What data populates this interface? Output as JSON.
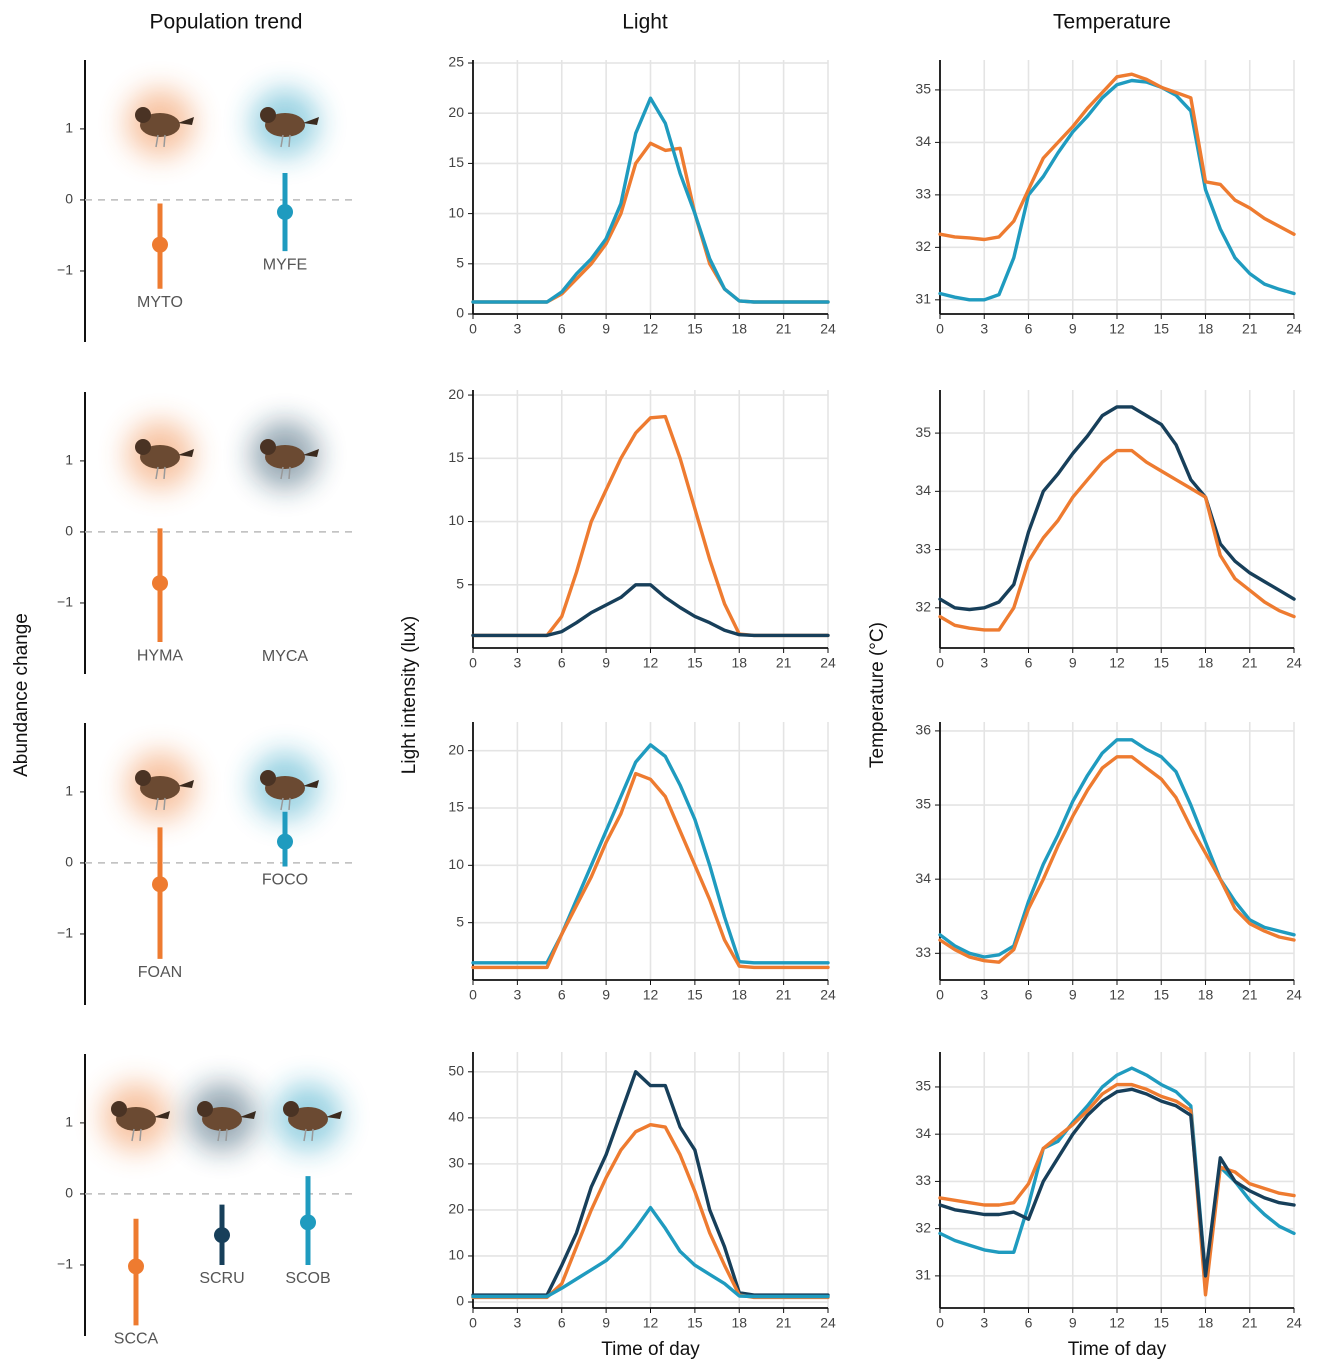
{
  "chart_data": [
    {
      "type": "pointrange",
      "title": "Population trend",
      "categories": [
        "MYTO",
        "MYFE"
      ],
      "values": [
        -0.63,
        -0.17
      ],
      "lower": [
        -1.25,
        -0.72
      ],
      "upper": [
        -0.05,
        0.38
      ],
      "colors": [
        "#ee7b30",
        "#1f9bbf"
      ],
      "ylim": [
        -2,
        1.97
      ],
      "yticks": [
        {
          "value": -1,
          "label": "−1"
        },
        0,
        1
      ]
    },
    {
      "type": "line",
      "title": "Light",
      "x": [
        0,
        1,
        2,
        3,
        4,
        5,
        6,
        7,
        8,
        9,
        10,
        11,
        12,
        13,
        14,
        15,
        16,
        17,
        18,
        19,
        20,
        21,
        22,
        23,
        24
      ],
      "series": [
        {
          "color": "#ee7b30",
          "values": [
            1.2,
            1.2,
            1.2,
            1.2,
            1.2,
            1.2,
            2,
            3.5,
            5,
            7,
            10,
            15,
            17,
            16.3,
            16.5,
            10,
            5,
            2.5,
            1.3,
            1.2,
            1.2,
            1.2,
            1.2,
            1.2,
            1.2
          ]
        },
        {
          "color": "#1f9bbf",
          "values": [
            1.2,
            1.2,
            1.2,
            1.2,
            1.2,
            1.2,
            2.2,
            4,
            5.5,
            7.5,
            11,
            18,
            21.5,
            19,
            14,
            10,
            5.5,
            2.5,
            1.3,
            1.2,
            1.2,
            1.2,
            1.2,
            1.2,
            1.2
          ]
        }
      ],
      "xlim": [
        0,
        24
      ],
      "xticks": [
        0,
        3,
        6,
        9,
        12,
        15,
        18,
        21,
        24
      ],
      "ylim": [
        0,
        25.3
      ],
      "yticks": [
        0,
        5,
        10,
        15,
        20,
        25
      ],
      "grid": true
    },
    {
      "type": "line",
      "title": "Temperature",
      "x": [
        0,
        1,
        2,
        3,
        4,
        5,
        6,
        7,
        8,
        9,
        10,
        11,
        12,
        13,
        14,
        15,
        16,
        17,
        18,
        19,
        20,
        21,
        22,
        23,
        24
      ],
      "series": [
        {
          "color": "#1f9bbf",
          "values": [
            31.12,
            31.05,
            31.0,
            31.0,
            31.1,
            31.8,
            33.0,
            33.35,
            33.8,
            34.2,
            34.5,
            34.85,
            35.1,
            35.18,
            35.15,
            35.05,
            34.9,
            34.6,
            33.1,
            32.35,
            31.8,
            31.5,
            31.3,
            31.2,
            31.12
          ]
        },
        {
          "color": "#ee7b30",
          "values": [
            32.25,
            32.2,
            32.18,
            32.15,
            32.2,
            32.5,
            33.1,
            33.7,
            34.0,
            34.3,
            34.65,
            34.95,
            35.25,
            35.3,
            35.2,
            35.05,
            34.95,
            34.85,
            33.25,
            33.2,
            32.9,
            32.75,
            32.55,
            32.4,
            32.25
          ]
        }
      ],
      "xlim": [
        0,
        24
      ],
      "xticks": [
        0,
        3,
        6,
        9,
        12,
        15,
        18,
        21,
        24
      ],
      "ylim": [
        30.73,
        35.57
      ],
      "yticks": [
        31,
        32,
        33,
        34,
        35
      ],
      "grid": true
    },
    {
      "type": "pointrange",
      "ylabel": "Abundance change",
      "categories": [
        "HYMA",
        "MYCA"
      ],
      "values": [
        -0.72,
        null
      ],
      "lower": [
        -1.55,
        null
      ],
      "upper": [
        0.05,
        null
      ],
      "colors": [
        "#ee7b30",
        "#173f5a"
      ],
      "ylim": [
        -2,
        1.97
      ],
      "yticks": [
        {
          "value": -1,
          "label": "−1"
        },
        0,
        1
      ]
    },
    {
      "type": "line",
      "ylabel": "Light intensity (lux)",
      "x": [
        0,
        1,
        2,
        3,
        4,
        5,
        6,
        7,
        8,
        9,
        10,
        11,
        12,
        13,
        14,
        15,
        16,
        17,
        18,
        19,
        20,
        21,
        22,
        23,
        24
      ],
      "series": [
        {
          "color": "#ee7b30",
          "values": [
            1,
            1,
            1,
            1,
            1,
            1,
            2.5,
            6,
            10,
            12.5,
            15,
            17,
            18.2,
            18.3,
            15,
            11,
            7,
            3.5,
            1.1,
            1,
            1,
            1,
            1,
            1,
            1
          ]
        },
        {
          "color": "#173f5a",
          "values": [
            1,
            1,
            1,
            1,
            1,
            1,
            1.3,
            2,
            2.8,
            3.4,
            4,
            5,
            5,
            4,
            3.2,
            2.5,
            2,
            1.4,
            1.05,
            1,
            1,
            1,
            1,
            1,
            1
          ]
        }
      ],
      "xlim": [
        0,
        24
      ],
      "xticks": [
        0,
        3,
        6,
        9,
        12,
        15,
        18,
        21,
        24
      ],
      "ylim": [
        0,
        20.4
      ],
      "yticks": [
        5,
        10,
        15,
        20
      ],
      "grid": true
    },
    {
      "type": "line",
      "ylabel": "Temperature (°C)",
      "x": [
        0,
        1,
        2,
        3,
        4,
        5,
        6,
        7,
        8,
        9,
        10,
        11,
        12,
        13,
        14,
        15,
        16,
        17,
        18,
        19,
        20,
        21,
        22,
        23,
        24
      ],
      "series": [
        {
          "color": "#173f5a",
          "values": [
            32.15,
            32.0,
            31.97,
            32.0,
            32.1,
            32.4,
            33.3,
            34.0,
            34.3,
            34.65,
            34.95,
            35.3,
            35.45,
            35.45,
            35.3,
            35.15,
            34.8,
            34.2,
            33.9,
            33.1,
            32.8,
            32.6,
            32.45,
            32.3,
            32.15
          ]
        },
        {
          "color": "#ee7b30",
          "values": [
            31.85,
            31.7,
            31.65,
            31.62,
            31.62,
            32.0,
            32.8,
            33.2,
            33.5,
            33.9,
            34.2,
            34.5,
            34.7,
            34.7,
            34.5,
            34.35,
            34.2,
            34.05,
            33.9,
            32.9,
            32.5,
            32.3,
            32.1,
            31.95,
            31.85
          ]
        }
      ],
      "xlim": [
        0,
        24
      ],
      "xticks": [
        0,
        3,
        6,
        9,
        12,
        15,
        18,
        21,
        24
      ],
      "ylim": [
        31.31,
        35.74
      ],
      "yticks": [
        32,
        33,
        34,
        35
      ],
      "grid": true
    },
    {
      "type": "pointrange",
      "categories": [
        "FOAN",
        "FOCO"
      ],
      "values": [
        -0.3,
        0.3
      ],
      "lower": [
        -1.35,
        -0.05
      ],
      "upper": [
        0.5,
        0.72
      ],
      "colors": [
        "#ee7b30",
        "#1f9bbf"
      ],
      "ylim": [
        -2,
        1.97
      ],
      "yticks": [
        {
          "value": -1,
          "label": "−1"
        },
        0,
        1
      ]
    },
    {
      "type": "line",
      "x": [
        0,
        1,
        2,
        3,
        4,
        5,
        6,
        7,
        8,
        9,
        10,
        11,
        12,
        13,
        14,
        15,
        16,
        17,
        18,
        19,
        20,
        21,
        22,
        23,
        24
      ],
      "series": [
        {
          "color": "#1f9bbf",
          "values": [
            1.5,
            1.5,
            1.5,
            1.5,
            1.5,
            1.5,
            4,
            7,
            10,
            13,
            16,
            19,
            20.5,
            19.5,
            17,
            14,
            10,
            5.5,
            1.6,
            1.5,
            1.5,
            1.5,
            1.5,
            1.5,
            1.5
          ]
        },
        {
          "color": "#ee7b30",
          "values": [
            1.1,
            1.1,
            1.1,
            1.1,
            1.1,
            1.1,
            4,
            6.5,
            9,
            12,
            14.5,
            18,
            17.5,
            16,
            13,
            10,
            7,
            3.5,
            1.2,
            1.1,
            1.1,
            1.1,
            1.1,
            1.1,
            1.1
          ]
        }
      ],
      "xlim": [
        0,
        24
      ],
      "xticks": [
        0,
        3,
        6,
        9,
        12,
        15,
        18,
        21,
        24
      ],
      "ylim": [
        0,
        22.5
      ],
      "yticks": [
        5,
        10,
        15,
        20
      ],
      "grid": true
    },
    {
      "type": "line",
      "x": [
        0,
        1,
        2,
        3,
        4,
        5,
        6,
        7,
        8,
        9,
        10,
        11,
        12,
        13,
        14,
        15,
        16,
        17,
        18,
        19,
        20,
        21,
        22,
        23,
        24
      ],
      "series": [
        {
          "color": "#1f9bbf",
          "values": [
            33.25,
            33.1,
            33.0,
            32.95,
            32.98,
            33.1,
            33.7,
            34.2,
            34.6,
            35.05,
            35.4,
            35.7,
            35.88,
            35.88,
            35.75,
            35.65,
            35.45,
            35.0,
            34.5,
            34.0,
            33.7,
            33.45,
            33.35,
            33.3,
            33.25
          ]
        },
        {
          "color": "#ee7b30",
          "values": [
            33.18,
            33.05,
            32.95,
            32.9,
            32.88,
            33.05,
            33.6,
            34.0,
            34.45,
            34.85,
            35.2,
            35.5,
            35.65,
            35.65,
            35.5,
            35.35,
            35.1,
            34.7,
            34.35,
            34.0,
            33.6,
            33.4,
            33.3,
            33.22,
            33.18
          ]
        }
      ],
      "xlim": [
        0,
        24
      ],
      "xticks": [
        0,
        3,
        6,
        9,
        12,
        15,
        18,
        21,
        24
      ],
      "ylim": [
        32.64,
        36.12
      ],
      "yticks": [
        33,
        34,
        35,
        36
      ],
      "grid": true
    },
    {
      "type": "pointrange",
      "categories": [
        "SCCA",
        "SCRU",
        "SCOB"
      ],
      "values": [
        -1.02,
        -0.58,
        -0.4
      ],
      "lower": [
        -1.85,
        -1.0,
        -1.0
      ],
      "upper": [
        -0.35,
        -0.15,
        0.25
      ],
      "colors": [
        "#ee7b30",
        "#173f5a",
        "#1f9bbf"
      ],
      "ylim": [
        -2,
        1.97
      ],
      "yticks": [
        {
          "value": -1,
          "label": "−1"
        },
        0,
        1
      ]
    },
    {
      "type": "line",
      "xlabel": "Time of day",
      "x": [
        0,
        1,
        2,
        3,
        4,
        5,
        6,
        7,
        8,
        9,
        10,
        11,
        12,
        13,
        14,
        15,
        16,
        17,
        18,
        19,
        20,
        21,
        22,
        23,
        24
      ],
      "series": [
        {
          "color": "#173f5a",
          "values": [
            1.5,
            1.5,
            1.5,
            1.5,
            1.5,
            1.5,
            8,
            15,
            25,
            32,
            41,
            50,
            47,
            47,
            38,
            33,
            20,
            12,
            2,
            1.5,
            1.5,
            1.5,
            1.5,
            1.5,
            1.5
          ]
        },
        {
          "color": "#ee7b30",
          "values": [
            1,
            1,
            1,
            1,
            1,
            1,
            4,
            12,
            20,
            27,
            33,
            37,
            38.5,
            38,
            32,
            24,
            15,
            8,
            1.5,
            1,
            1,
            1,
            1,
            1,
            1
          ]
        },
        {
          "color": "#1f9bbf",
          "values": [
            1.2,
            1.2,
            1.2,
            1.2,
            1.2,
            1.2,
            3,
            5,
            7,
            9,
            12,
            16,
            20.5,
            16,
            11,
            8,
            6,
            4,
            1.3,
            1.2,
            1.2,
            1.2,
            1.2,
            1.2,
            1.2
          ]
        }
      ],
      "xlim": [
        0,
        24
      ],
      "xticks": [
        0,
        3,
        6,
        9,
        12,
        15,
        18,
        21,
        24
      ],
      "ylim": [
        -1.3,
        54.3
      ],
      "yticks": [
        0,
        10,
        20,
        30,
        40,
        50
      ],
      "grid": true
    },
    {
      "type": "line",
      "xlabel": "Time of day",
      "x": [
        0,
        1,
        2,
        3,
        4,
        5,
        6,
        7,
        8,
        9,
        10,
        11,
        12,
        13,
        14,
        15,
        16,
        17,
        18,
        19,
        20,
        21,
        22,
        23,
        24
      ],
      "series": [
        {
          "color": "#1f9bbf",
          "values": [
            31.9,
            31.75,
            31.65,
            31.55,
            31.5,
            31.5,
            32.5,
            33.7,
            33.85,
            34.25,
            34.6,
            35.0,
            35.25,
            35.4,
            35.25,
            35.05,
            34.9,
            34.6,
            31.0,
            33.3,
            33.0,
            32.6,
            32.3,
            32.05,
            31.9
          ]
        },
        {
          "color": "#ee7b30",
          "values": [
            32.65,
            32.6,
            32.55,
            32.5,
            32.5,
            32.55,
            32.95,
            33.7,
            33.95,
            34.2,
            34.5,
            34.85,
            35.05,
            35.05,
            34.95,
            34.8,
            34.7,
            34.5,
            30.6,
            33.3,
            33.2,
            32.95,
            32.85,
            32.75,
            32.7
          ]
        },
        {
          "color": "#173f5a",
          "values": [
            32.5,
            32.4,
            32.35,
            32.3,
            32.3,
            32.35,
            32.2,
            33.0,
            33.5,
            34.0,
            34.4,
            34.7,
            34.9,
            34.95,
            34.85,
            34.7,
            34.6,
            34.4,
            31.0,
            33.5,
            33.0,
            32.8,
            32.65,
            32.55,
            32.5
          ]
        }
      ],
      "xlim": [
        0,
        24
      ],
      "xticks": [
        0,
        3,
        6,
        9,
        12,
        15,
        18,
        21,
        24
      ],
      "ylim": [
        30.32,
        35.74
      ],
      "yticks": [
        31,
        32,
        33,
        34,
        35
      ],
      "grid": true
    }
  ]
}
